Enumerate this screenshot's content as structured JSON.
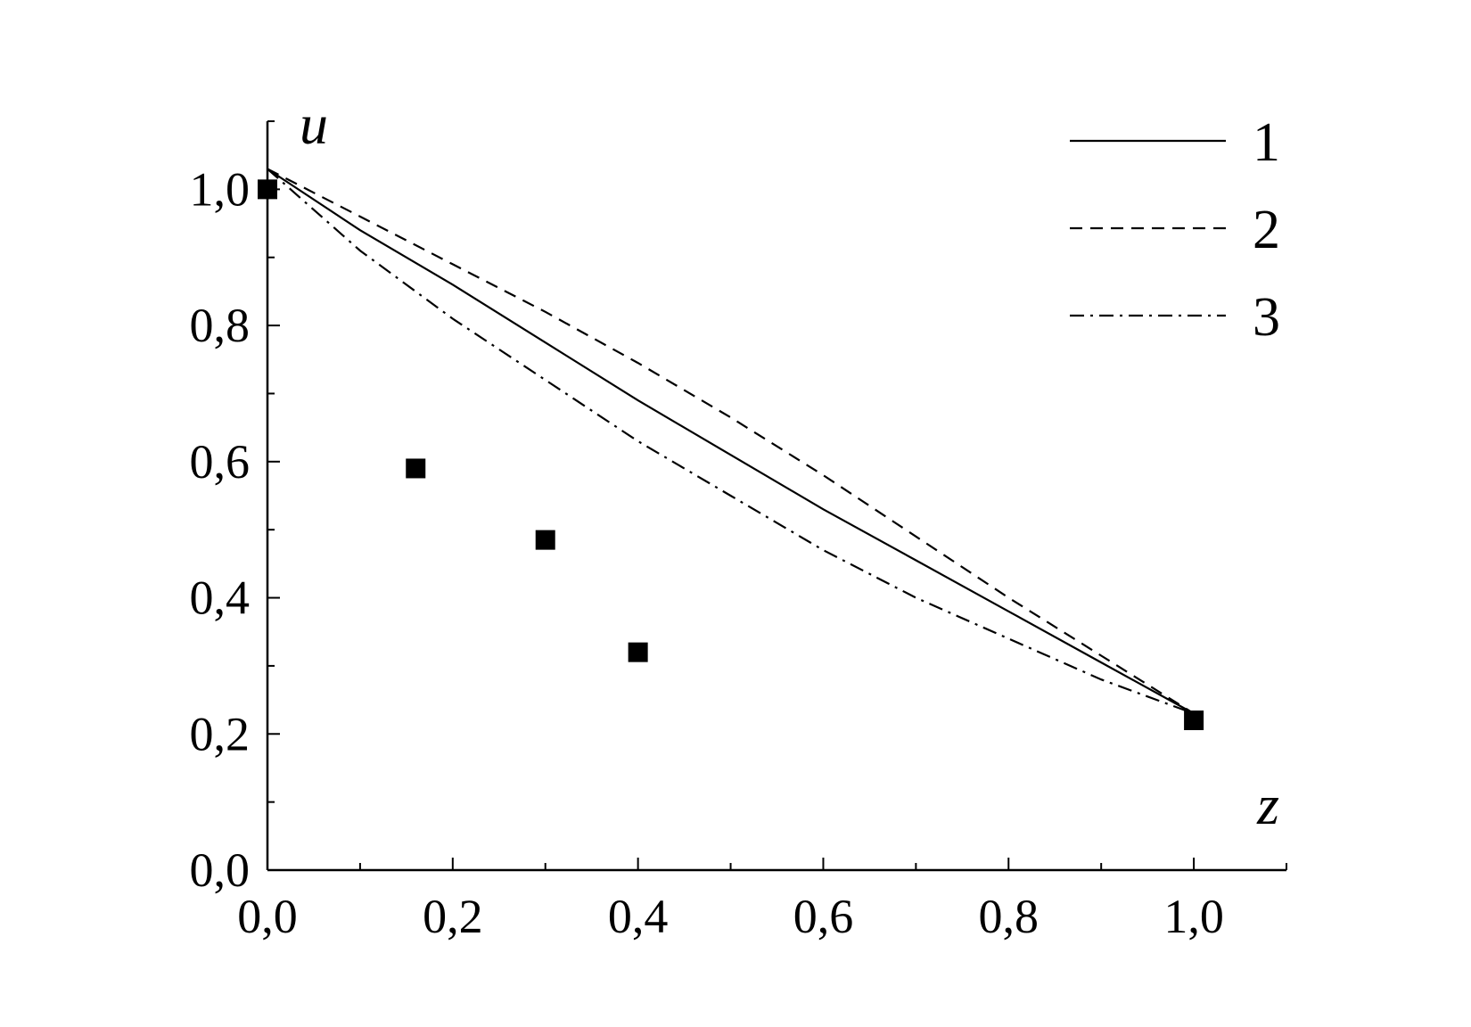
{
  "chart_data": {
    "type": "line",
    "title": "",
    "xlabel": "z",
    "ylabel": "u",
    "xlim": [
      0,
      1.1
    ],
    "ylim": [
      0,
      1.1
    ],
    "x_ticks": [
      0,
      0.2,
      0.4,
      0.6,
      0.8,
      1.0
    ],
    "x_tick_labels": [
      "0,0",
      "0,2",
      "0,4",
      "0,6",
      "0,8",
      "1,0"
    ],
    "y_ticks": [
      0,
      0.2,
      0.4,
      0.6,
      0.8,
      1.0
    ],
    "y_tick_labels": [
      "0,0",
      "0,2",
      "0,4",
      "0,6",
      "0,8",
      "1,0"
    ],
    "grid": false,
    "legend_position": "top-right",
    "series": [
      {
        "name": "1",
        "style": "solid",
        "x": [
          0,
          0.1,
          0.2,
          0.3,
          0.4,
          0.5,
          0.6,
          0.7,
          0.8,
          0.9,
          1.0
        ],
        "y": [
          1.03,
          0.94,
          0.86,
          0.775,
          0.69,
          0.61,
          0.53,
          0.455,
          0.38,
          0.305,
          0.23
        ]
      },
      {
        "name": "2",
        "style": "dashed",
        "x": [
          0,
          0.1,
          0.2,
          0.3,
          0.4,
          0.5,
          0.6,
          0.7,
          0.8,
          0.9,
          1.0
        ],
        "y": [
          1.03,
          0.96,
          0.89,
          0.82,
          0.745,
          0.665,
          0.58,
          0.49,
          0.4,
          0.315,
          0.23
        ]
      },
      {
        "name": "3",
        "style": "dashdot",
        "x": [
          0,
          0.1,
          0.2,
          0.3,
          0.4,
          0.5,
          0.6,
          0.7,
          0.8,
          0.9,
          1.0
        ],
        "y": [
          1.03,
          0.91,
          0.81,
          0.72,
          0.63,
          0.55,
          0.47,
          0.4,
          0.34,
          0.28,
          0.23
        ]
      }
    ],
    "points": {
      "marker": "square",
      "x": [
        0.0,
        0.16,
        0.3,
        0.4,
        1.0
      ],
      "y": [
        1.0,
        0.59,
        0.485,
        0.32,
        0.22
      ]
    }
  }
}
